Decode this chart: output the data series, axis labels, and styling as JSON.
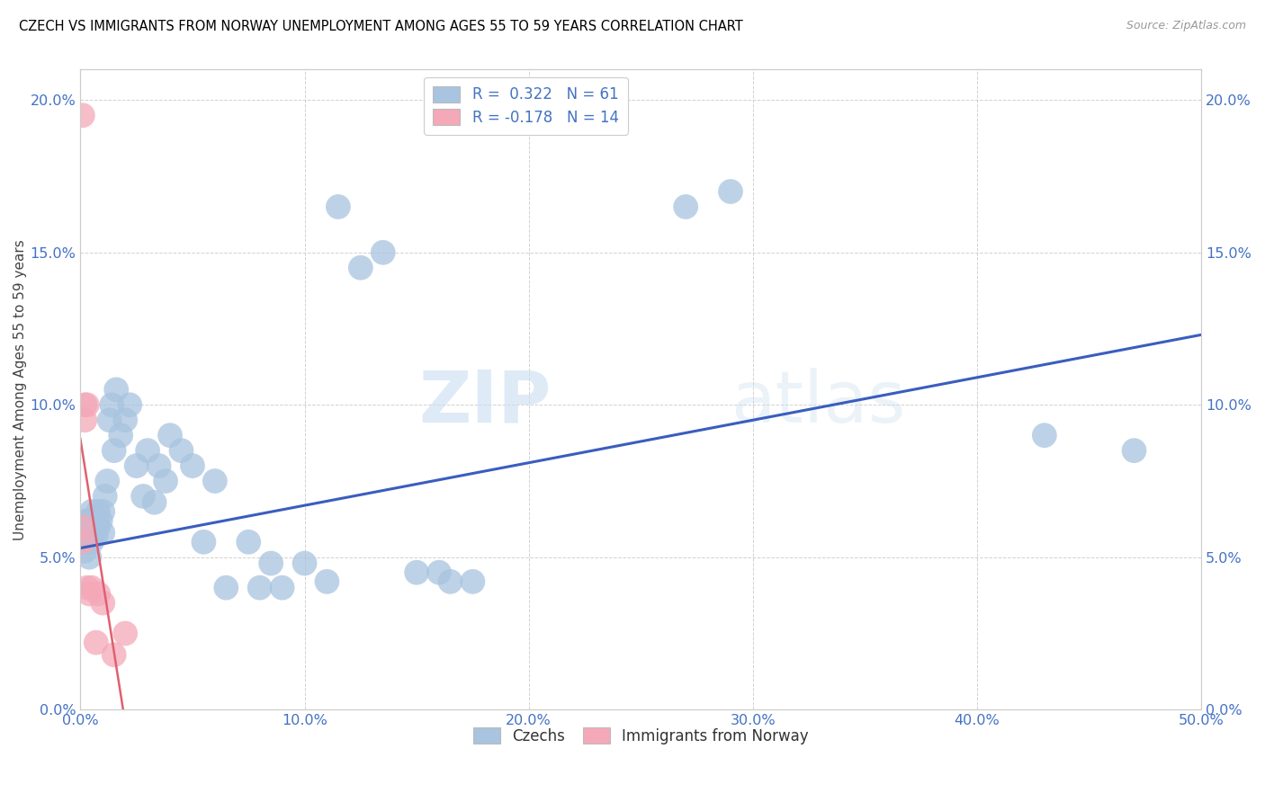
{
  "title": "CZECH VS IMMIGRANTS FROM NORWAY UNEMPLOYMENT AMONG AGES 55 TO 59 YEARS CORRELATION CHART",
  "source": "Source: ZipAtlas.com",
  "ylabel": "Unemployment Among Ages 55 to 59 years",
  "legend_czechs": "Czechs",
  "legend_norway": "Immigrants from Norway",
  "R_czech": 0.322,
  "N_czech": 61,
  "R_norway": -0.178,
  "N_norway": 14,
  "watermark_zip": "ZIP",
  "watermark_atlas": "atlas",
  "xlim": [
    0.0,
    0.5
  ],
  "ylim": [
    0.0,
    0.21
  ],
  "xticks": [
    0.0,
    0.1,
    0.2,
    0.3,
    0.4,
    0.5
  ],
  "yticks": [
    0.0,
    0.05,
    0.1,
    0.15,
    0.2
  ],
  "czech_color": "#a8c4e0",
  "norway_color": "#f4a8b8",
  "czech_line_color": "#3a5dbe",
  "norway_line_color": "#e06070",
  "czech_x": [
    0.001,
    0.001,
    0.002,
    0.002,
    0.002,
    0.003,
    0.003,
    0.003,
    0.004,
    0.004,
    0.004,
    0.005,
    0.005,
    0.005,
    0.006,
    0.006,
    0.007,
    0.007,
    0.008,
    0.008,
    0.009,
    0.01,
    0.01,
    0.011,
    0.012,
    0.013,
    0.014,
    0.015,
    0.016,
    0.018,
    0.02,
    0.022,
    0.025,
    0.028,
    0.03,
    0.033,
    0.035,
    0.038,
    0.04,
    0.045,
    0.05,
    0.055,
    0.06,
    0.065,
    0.075,
    0.08,
    0.085,
    0.09,
    0.1,
    0.11,
    0.115,
    0.125,
    0.135,
    0.15,
    0.16,
    0.165,
    0.175,
    0.27,
    0.29,
    0.43,
    0.47
  ],
  "czech_y": [
    0.058,
    0.055,
    0.06,
    0.052,
    0.058,
    0.055,
    0.057,
    0.062,
    0.05,
    0.058,
    0.062,
    0.055,
    0.06,
    0.065,
    0.058,
    0.06,
    0.062,
    0.057,
    0.06,
    0.065,
    0.062,
    0.058,
    0.065,
    0.07,
    0.075,
    0.095,
    0.1,
    0.085,
    0.105,
    0.09,
    0.095,
    0.1,
    0.08,
    0.07,
    0.085,
    0.068,
    0.08,
    0.075,
    0.09,
    0.085,
    0.08,
    0.055,
    0.075,
    0.04,
    0.055,
    0.04,
    0.048,
    0.04,
    0.048,
    0.042,
    0.165,
    0.145,
    0.15,
    0.045,
    0.045,
    0.042,
    0.042,
    0.165,
    0.17,
    0.09,
    0.085
  ],
  "norway_x": [
    0.001,
    0.001,
    0.001,
    0.002,
    0.002,
    0.003,
    0.003,
    0.004,
    0.005,
    0.007,
    0.008,
    0.01,
    0.015,
    0.02
  ],
  "norway_y": [
    0.195,
    0.06,
    0.055,
    0.1,
    0.095,
    0.1,
    0.04,
    0.038,
    0.04,
    0.022,
    0.038,
    0.035,
    0.018,
    0.025
  ]
}
